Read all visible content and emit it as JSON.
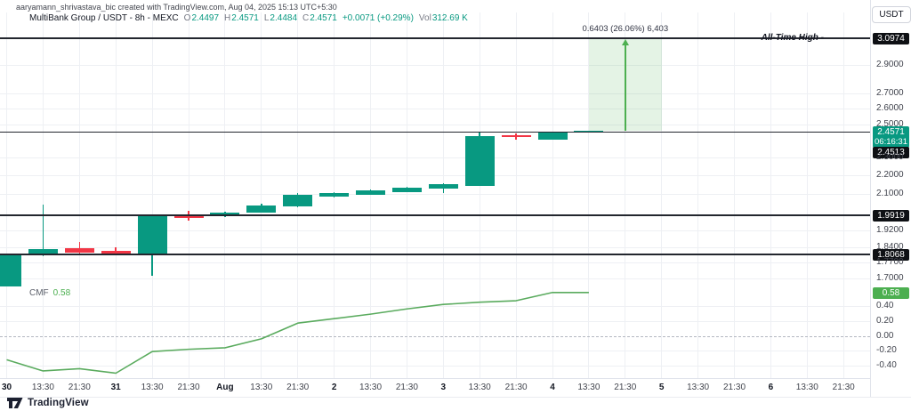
{
  "attribution": "aaryamann_shrivastava_bic created with TradingView.com, Aug 04, 2025 15:13 UTC+5:30",
  "legend": {
    "title": "MultiBank Group / USDT - 8h - MEXC",
    "o_label": "O",
    "o": "2.4497",
    "h_label": "H",
    "h": "2.4571",
    "l_label": "L",
    "l": "2.4484",
    "c_label": "C",
    "c": "2.4571",
    "change": "+0.0071 (+0.29%)",
    "vol_label": "Vol",
    "vol": "312.69 K"
  },
  "indicator": {
    "name": "CMF",
    "value": "0.58"
  },
  "drawings": {
    "ath_label": "All-Time High -",
    "measure_label": "0.6403 (26.06%) 6,403"
  },
  "axis": {
    "currency_button": "USDT",
    "badges": {
      "ath": "3.0974",
      "last_price": "2.4571",
      "countdown": "06:16:31",
      "line_a": "2.4513",
      "line_b": "1.9919",
      "line_c": "1.8068",
      "indicator": "0.58"
    },
    "price_labels": [
      {
        "t": "2.9000",
        "p": 2.9
      },
      {
        "t": "2.7000",
        "p": 2.7
      },
      {
        "t": "2.6000",
        "p": 2.6
      },
      {
        "t": "2.5000",
        "p": 2.5
      },
      {
        "t": "2.3000",
        "p": 2.3
      },
      {
        "t": "2.2000",
        "p": 2.2
      },
      {
        "t": "2.1000",
        "p": 2.1
      },
      {
        "t": "1.9200",
        "p": 1.92
      },
      {
        "t": "1.8400",
        "p": 1.84
      },
      {
        "t": "1.7700",
        "p": 1.77
      },
      {
        "t": "1.7000",
        "p": 1.7
      }
    ],
    "cmf_labels": [
      {
        "t": "0.40",
        "v": 0.4
      },
      {
        "t": "0.20",
        "v": 0.2
      },
      {
        "t": "0.00",
        "v": 0.0
      },
      {
        "t": "-0.20",
        "v": -0.2
      },
      {
        "t": "-0.40",
        "v": -0.4
      }
    ]
  },
  "time_axis": [
    {
      "t": "30",
      "major": true
    },
    {
      "t": "13:30",
      "major": false
    },
    {
      "t": "21:30",
      "major": false
    },
    {
      "t": "31",
      "major": true
    },
    {
      "t": "13:30",
      "major": false
    },
    {
      "t": "21:30",
      "major": false
    },
    {
      "t": "Aug",
      "major": true
    },
    {
      "t": "13:30",
      "major": false
    },
    {
      "t": "21:30",
      "major": false
    },
    {
      "t": "2",
      "major": true
    },
    {
      "t": "13:30",
      "major": false
    },
    {
      "t": "21:30",
      "major": false
    },
    {
      "t": "3",
      "major": true
    },
    {
      "t": "13:30",
      "major": false
    },
    {
      "t": "21:30",
      "major": false
    },
    {
      "t": "4",
      "major": true
    },
    {
      "t": "13:30",
      "major": false
    },
    {
      "t": "21:30",
      "major": false
    },
    {
      "t": "5",
      "major": true
    },
    {
      "t": "13:30",
      "major": false
    },
    {
      "t": "21:30",
      "major": false
    },
    {
      "t": "6",
      "major": true
    },
    {
      "t": "13:30",
      "major": false
    },
    {
      "t": "21:30",
      "major": false
    }
  ],
  "footer": {
    "brand": "TradingView"
  },
  "colors": {
    "up": "#089981",
    "down": "#F23645",
    "cmf_line": "#5aab5e",
    "measure_line": "#4caf50",
    "measure_fill": "rgba(76,175,80,0.15)",
    "badge_dark": "#0e1014",
    "badge_up": "#089981",
    "badge_indicator": "#4caf50"
  },
  "chart_data": {
    "type": "candlestick",
    "title": "MultiBank Group / USDT",
    "exchange": "MEXC",
    "interval": "8h",
    "last_change": "+0.0071 (+0.29%)",
    "last_volume": "312.69 K",
    "ath": 3.0974,
    "price_lines": [
      3.0974,
      2.4513,
      1.9919,
      1.8068
    ],
    "price_axis_range": [
      1.66,
      3.12
    ],
    "scale": "logarithmic",
    "candles": [
      {
        "time": "Jul 30 05:30",
        "o": 1.665,
        "h": 1.811,
        "l": 1.665,
        "c": 1.811
      },
      {
        "time": "Jul 30 13:30",
        "o": 1.807,
        "h": 2.046,
        "l": 1.799,
        "c": 1.833
      },
      {
        "time": "Jul 30 21:30",
        "o": 1.837,
        "h": 1.864,
        "l": 1.811,
        "c": 1.813
      },
      {
        "time": "Jul 31 05:30",
        "o": 1.823,
        "h": 1.841,
        "l": 1.802,
        "c": 1.805
      },
      {
        "time": "Jul 31 13:30",
        "o": 1.807,
        "h": 1.995,
        "l": 1.713,
        "c": 1.988
      },
      {
        "time": "Jul 31 21:30",
        "o": 1.993,
        "h": 2.013,
        "l": 1.966,
        "c": 1.981
      },
      {
        "time": "Aug 1 05:30",
        "o": 1.99,
        "h": 2.008,
        "l": 1.984,
        "c": 2.004
      },
      {
        "time": "Aug 1 13:30",
        "o": 2.006,
        "h": 2.049,
        "l": 2.004,
        "c": 2.04
      },
      {
        "time": "Aug 1 21:30",
        "o": 2.037,
        "h": 2.107,
        "l": 2.033,
        "c": 2.097
      },
      {
        "time": "Aug 2 05:30",
        "o": 2.085,
        "h": 2.109,
        "l": 2.083,
        "c": 2.104
      },
      {
        "time": "Aug 2 13:30",
        "o": 2.097,
        "h": 2.123,
        "l": 2.095,
        "c": 2.118
      },
      {
        "time": "Aug 2 21:30",
        "o": 2.112,
        "h": 2.138,
        "l": 2.109,
        "c": 2.133
      },
      {
        "time": "Aug 3 05:30",
        "o": 2.131,
        "h": 2.16,
        "l": 2.104,
        "c": 2.155
      },
      {
        "time": "Aug 3 13:30",
        "o": 2.145,
        "h": 2.455,
        "l": 2.143,
        "c": 2.428
      },
      {
        "time": "Aug 3 21:30",
        "o": 2.433,
        "h": 2.444,
        "l": 2.406,
        "c": 2.422
      },
      {
        "time": "Aug 4 05:30",
        "o": 2.406,
        "h": 2.455,
        "l": 2.403,
        "c": 2.45
      },
      {
        "time": "Aug 4 13:30",
        "o": 2.4497,
        "h": 2.4571,
        "l": 2.4484,
        "c": 2.4571
      }
    ],
    "indicator": {
      "name": "CMF",
      "values": [
        -0.32,
        -0.47,
        -0.44,
        -0.5,
        -0.21,
        -0.18,
        -0.16,
        -0.04,
        0.17,
        0.23,
        0.29,
        0.36,
        0.42,
        0.45,
        0.47,
        0.58,
        0.58
      ],
      "last": 0.58,
      "zero_line": 0.0
    },
    "measure": {
      "from_price": 2.4571,
      "to_price": 3.0974,
      "change": 0.6403,
      "change_pct": 26.06,
      "ticks": 6403
    }
  }
}
